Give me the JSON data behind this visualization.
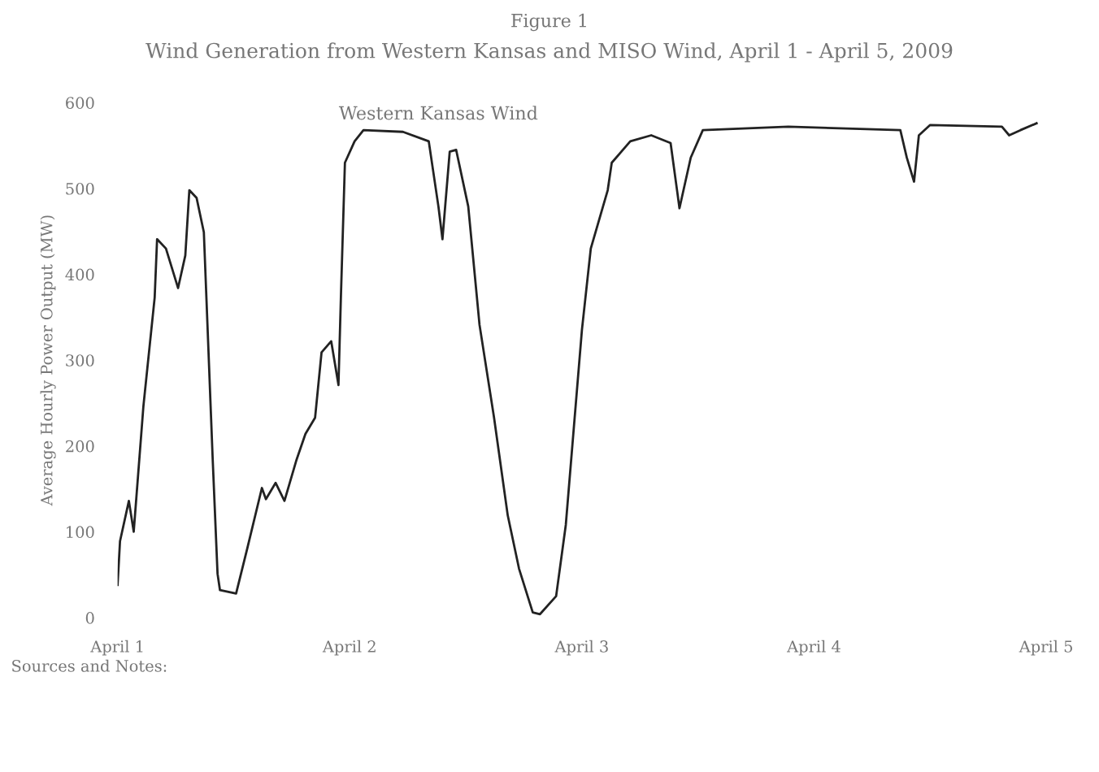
{
  "chart_data": {
    "type": "line",
    "title": "Figure 1",
    "subtitle": "Wind Generation from Western Kansas and MISO Wind, April 1 - April 5, 2009",
    "ylabel": "Average Hourly Power Output (MW)",
    "x": [
      "2009-04-01T00:00",
      "2009-04-01T00:15",
      "2009-04-01T01:10",
      "2009-04-01T01:40",
      "2009-04-01T02:40",
      "2009-04-01T03:50",
      "2009-04-01T04:05",
      "2009-04-01T05:00",
      "2009-04-01T06:15",
      "2009-04-01T07:00",
      "2009-04-01T07:25",
      "2009-04-01T08:10",
      "2009-04-01T08:55",
      "2009-04-01T09:50",
      "2009-04-01T10:20",
      "2009-04-01T10:35",
      "2009-04-01T12:15",
      "2009-04-01T13:25",
      "2009-04-01T14:55",
      "2009-04-01T15:20",
      "2009-04-01T16:20",
      "2009-04-01T17:15",
      "2009-04-01T18:30",
      "2009-04-01T19:25",
      "2009-04-01T20:25",
      "2009-04-01T21:05",
      "2009-04-01T22:05",
      "2009-04-01T22:50",
      "2009-04-01T23:05",
      "2009-04-01T23:30",
      "2009-04-02T00:30",
      "2009-04-02T01:25",
      "2009-04-02T05:30",
      "2009-04-02T08:10",
      "2009-04-02T09:10",
      "2009-04-02T09:35",
      "2009-04-02T10:20",
      "2009-04-02T11:00",
      "2009-04-02T12:15",
      "2009-04-02T13:25",
      "2009-04-02T14:55",
      "2009-04-02T16:20",
      "2009-04-02T17:30",
      "2009-04-02T18:55",
      "2009-04-02T19:40",
      "2009-04-02T21:20",
      "2009-04-02T22:20",
      "2009-04-02T23:15",
      "2009-04-03T00:00",
      "2009-04-03T00:55",
      "2009-04-03T02:40",
      "2009-04-03T03:05",
      "2009-04-03T05:00",
      "2009-04-03T07:10",
      "2009-04-03T09:10",
      "2009-04-03T09:50",
      "2009-04-03T10:05",
      "2009-04-03T11:15",
      "2009-04-03T12:30",
      "2009-04-03T21:20",
      "2009-04-04T08:55",
      "2009-04-04T09:35",
      "2009-04-04T10:20",
      "2009-04-04T10:50",
      "2009-04-04T12:00",
      "2009-04-04T19:25",
      "2009-04-04T20:10",
      "2009-04-04T21:20",
      "2009-04-04T23:00"
    ],
    "series": [
      {
        "name": "Western Kansas Wind",
        "color": "#222222",
        "values": [
          38,
          89,
          136,
          100,
          246,
          373,
          441,
          430,
          384,
          422,
          498,
          489,
          449,
          184,
          51,
          32,
          28,
          81,
          151,
          138,
          157,
          136,
          184,
          214,
          233,
          309,
          322,
          271,
          373,
          530,
          555,
          568,
          566,
          555,
          479,
          441,
          543,
          545,
          479,
          341,
          233,
          119,
          57,
          6,
          4,
          25,
          108,
          233,
          335,
          430,
          498,
          530,
          555,
          562,
          553,
          498,
          477,
          536,
          568,
          572,
          568,
          536,
          508,
          562,
          574,
          572,
          562,
          568,
          576
        ]
      }
    ],
    "xlim": [
      "2009-04-01",
      "2009-04-05"
    ],
    "xticks": [
      {
        "value": "2009-04-01",
        "label": "April 1"
      },
      {
        "value": "2009-04-02",
        "label": "April 2"
      },
      {
        "value": "2009-04-03",
        "label": "April 3"
      },
      {
        "value": "2009-04-04",
        "label": "April 4"
      },
      {
        "value": "2009-04-05",
        "label": "April 5"
      }
    ],
    "ylim": [
      0,
      600
    ],
    "yticks": [
      0,
      100,
      200,
      300,
      400,
      500,
      600
    ],
    "grid": false,
    "legend": false,
    "annotations": [
      "Sources and Notes:"
    ]
  }
}
